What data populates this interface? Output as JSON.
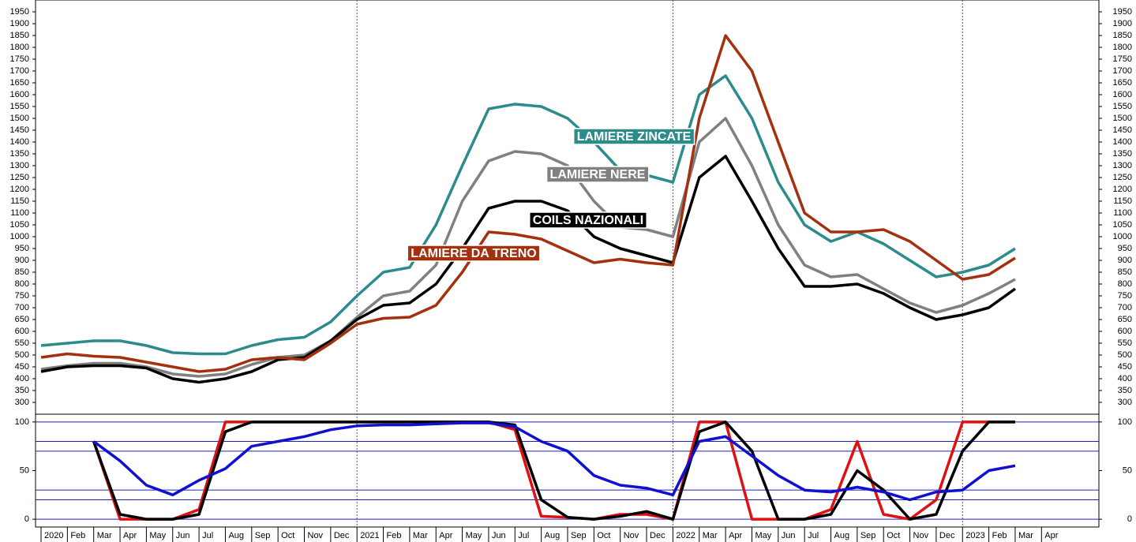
{
  "chart_data": [
    {
      "type": "line",
      "categories": [
        "2020",
        "Feb",
        "Mar",
        "Apr",
        "May",
        "Jun",
        "Jul",
        "Aug",
        "Sep",
        "Oct",
        "Nov",
        "Dec",
        "2021",
        "Feb",
        "Mar",
        "Apr",
        "May",
        "Jun",
        "Jul",
        "Aug",
        "Sep",
        "Oct",
        "Nov",
        "Dec",
        "2022",
        "Mar",
        "Apr",
        "May",
        "Jun",
        "Jul",
        "Aug",
        "Sep",
        "Oct",
        "Nov",
        "Dec",
        "2023",
        "Feb",
        "Mar",
        "Apr"
      ],
      "ylim": [
        250,
        2000
      ],
      "yticks": [
        300,
        350,
        400,
        450,
        500,
        550,
        600,
        650,
        700,
        750,
        800,
        850,
        900,
        950,
        1000,
        1050,
        1100,
        1150,
        1200,
        1250,
        1300,
        1350,
        1400,
        1450,
        1500,
        1550,
        1600,
        1650,
        1700,
        1750,
        1800,
        1850,
        1900,
        1950
      ],
      "series": [
        {
          "name": "LAMIERE ZINCATE",
          "color": "#2e8b8b",
          "values": [
            540,
            550,
            560,
            560,
            540,
            510,
            505,
            505,
            540,
            565,
            575,
            640,
            750,
            850,
            870,
            1050,
            1300,
            1540,
            1560,
            1550,
            1500,
            1400,
            1280,
            1260,
            1230,
            1600,
            1680,
            1500,
            1230,
            1050,
            980,
            1020,
            970,
            900,
            830,
            850,
            880,
            950,
            null
          ]
        },
        {
          "name": "LAMIERE NERE",
          "color": "#808080",
          "values": [
            440,
            455,
            465,
            465,
            450,
            420,
            410,
            420,
            460,
            490,
            500,
            560,
            660,
            750,
            770,
            880,
            1150,
            1320,
            1360,
            1350,
            1300,
            1150,
            1040,
            1030,
            1000,
            1400,
            1500,
            1300,
            1050,
            880,
            830,
            840,
            780,
            720,
            680,
            710,
            760,
            820,
            null
          ]
        },
        {
          "name": "COILS NAZIONALI",
          "color": "#000000",
          "values": [
            430,
            450,
            455,
            455,
            445,
            400,
            385,
            400,
            430,
            480,
            490,
            560,
            650,
            710,
            720,
            800,
            950,
            1120,
            1150,
            1150,
            1110,
            1000,
            950,
            920,
            890,
            1250,
            1340,
            1150,
            950,
            790,
            790,
            800,
            760,
            700,
            650,
            670,
            700,
            780,
            null
          ]
        },
        {
          "name": "LAMIERE DA TRENO",
          "color": "#a3300e",
          "values": [
            490,
            505,
            495,
            490,
            470,
            450,
            430,
            440,
            480,
            490,
            480,
            550,
            630,
            655,
            660,
            710,
            850,
            1020,
            1010,
            990,
            940,
            890,
            905,
            890,
            880,
            1500,
            1850,
            1700,
            1400,
            1100,
            1020,
            1020,
            1030,
            980,
            900,
            820,
            840,
            910,
            null
          ]
        }
      ]
    },
    {
      "type": "line",
      "ylim": [
        -8,
        108
      ],
      "yticks": [
        0,
        50,
        100
      ],
      "hlines": [
        100,
        80,
        70,
        30,
        20,
        0
      ],
      "hline_color": "#2020c0",
      "series": [
        {
          "color": "#e01010",
          "values": [
            null,
            null,
            80,
            0,
            0,
            0,
            10,
            100,
            100,
            100,
            100,
            100,
            100,
            100,
            100,
            100,
            100,
            100,
            92,
            3,
            2,
            0,
            5,
            5,
            0,
            100,
            100,
            0,
            0,
            0,
            10,
            80,
            5,
            0,
            20,
            100,
            100,
            100,
            null
          ]
        },
        {
          "color": "#000000",
          "values": [
            null,
            null,
            80,
            5,
            0,
            0,
            5,
            90,
            100,
            100,
            100,
            100,
            100,
            100,
            100,
            100,
            100,
            100,
            97,
            20,
            2,
            0,
            3,
            8,
            0,
            90,
            100,
            70,
            0,
            0,
            5,
            50,
            30,
            0,
            5,
            70,
            100,
            100,
            null
          ]
        },
        {
          "color": "#1010d0",
          "values": [
            null,
            null,
            80,
            60,
            35,
            25,
            40,
            52,
            75,
            80,
            85,
            92,
            96,
            97,
            97,
            98,
            99,
            99,
            95,
            80,
            70,
            45,
            35,
            32,
            25,
            80,
            85,
            65,
            45,
            30,
            28,
            33,
            28,
            20,
            28,
            30,
            50,
            55,
            null
          ]
        }
      ]
    }
  ]
}
